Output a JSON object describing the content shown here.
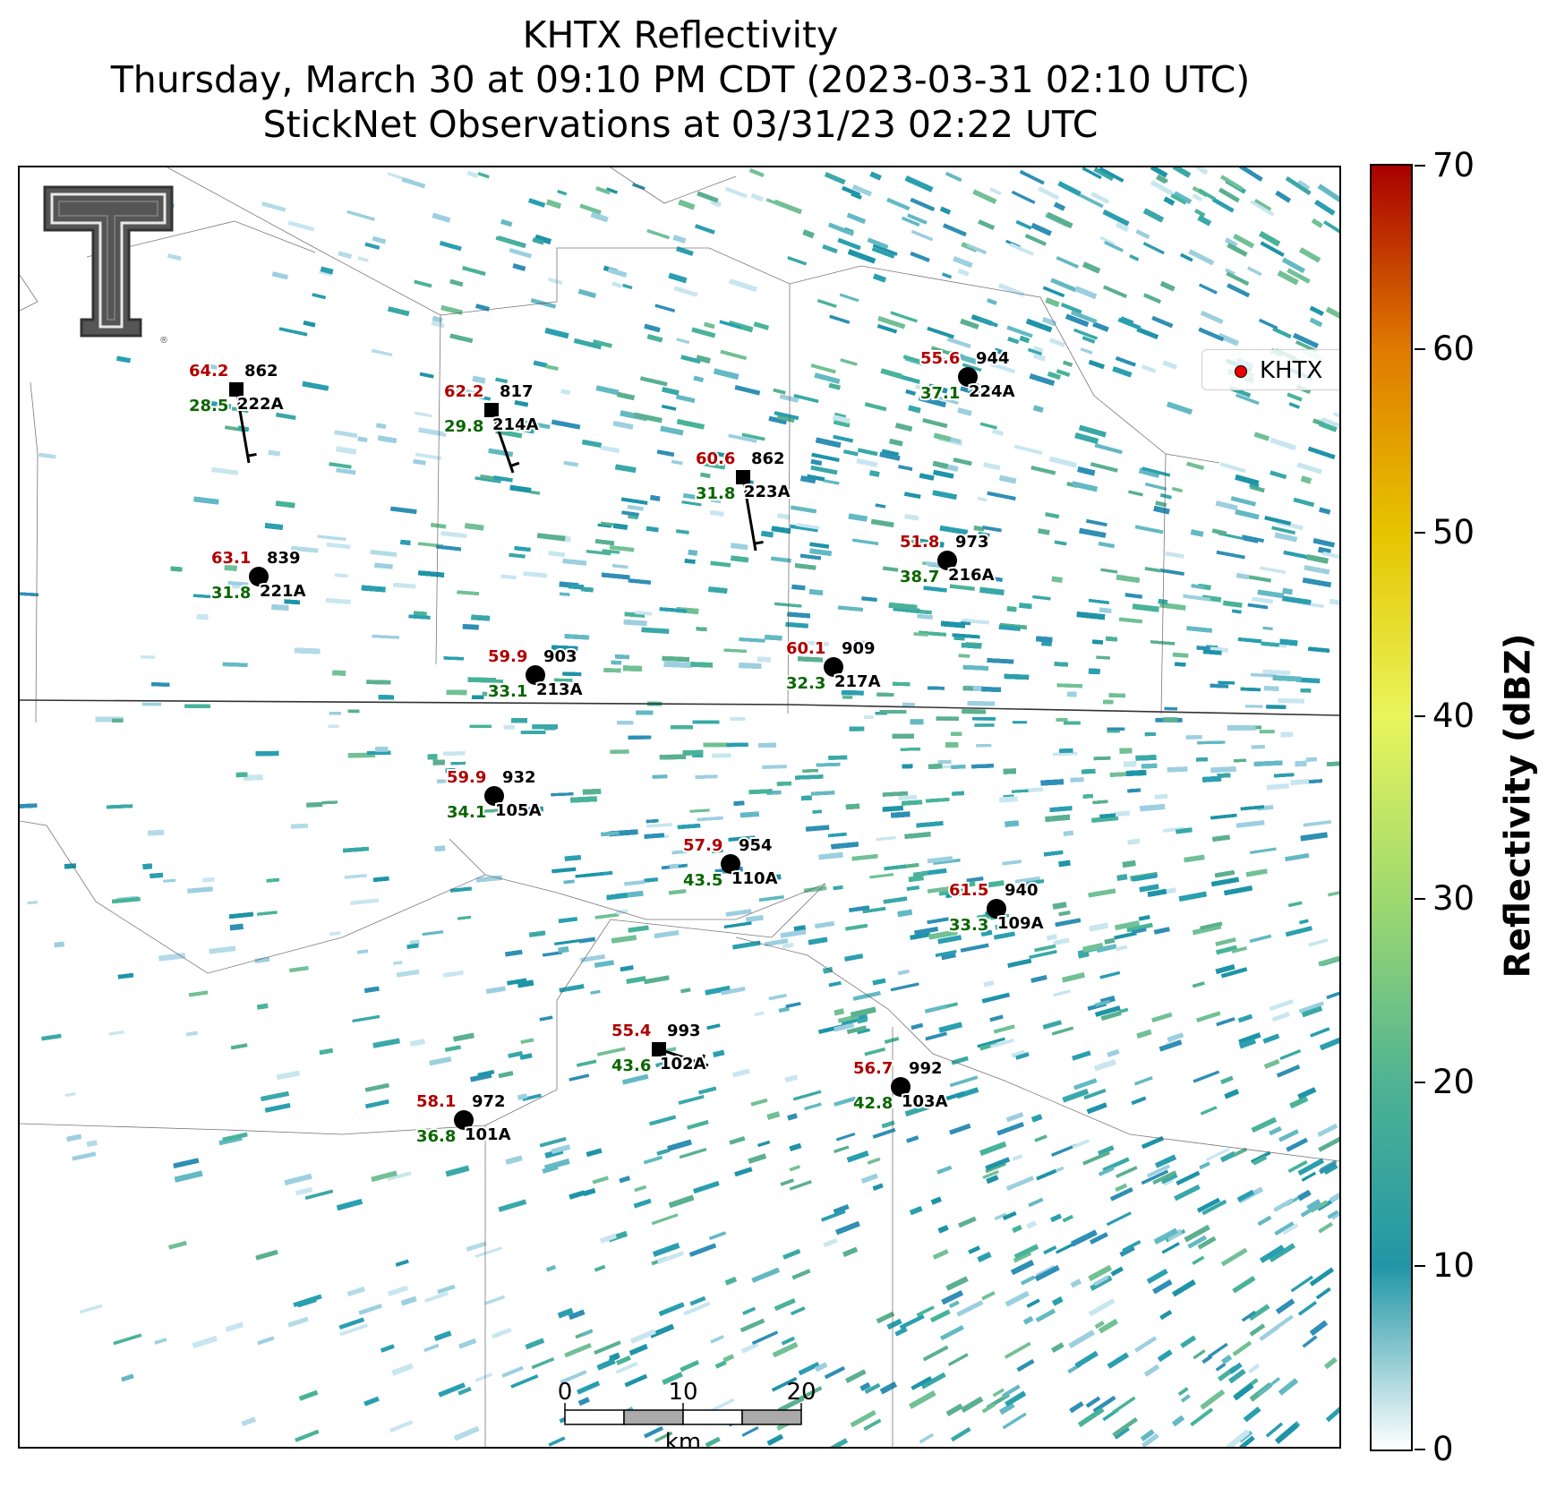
{
  "header": {
    "title_line1": "KHTX Reflectivity",
    "title_line2": "Thursday, March 30 at 09:10 PM CDT (2023-03-31 02:10 UTC)",
    "title_line3": "StickNet Observations at 03/31/23 02:22 UTC"
  },
  "legend": {
    "label": "KHTX",
    "marker_color": "#ee0000"
  },
  "logo": {
    "text": "Texas Tech double-T",
    "registered_mark": "®"
  },
  "colorbar": {
    "label": "Reflectivity (dBZ)",
    "min": 0,
    "max": 70,
    "ticks": [
      "0",
      "10",
      "20",
      "30",
      "40",
      "50",
      "60",
      "70"
    ],
    "colormap": [
      "#ffffff",
      "#2196a6",
      "#4fb393",
      "#9ed96f",
      "#e9f55b",
      "#e6c400",
      "#e07a00",
      "#a80000"
    ]
  },
  "scalebar": {
    "unit": "km",
    "ticks": [
      "0",
      "10",
      "20"
    ]
  },
  "colors": {
    "temperature": "#b00000",
    "dewpoint": "#0a6600",
    "station": "#000000"
  },
  "stations": [
    {
      "id": "222A",
      "temp": "64.2",
      "dew": "28.5",
      "pressure": "862",
      "marker": "square",
      "wind": "N"
    },
    {
      "id": "214A",
      "temp": "62.2",
      "dew": "29.8",
      "pressure": "817",
      "marker": "square",
      "wind": "NNW"
    },
    {
      "id": "223A",
      "temp": "60.6",
      "dew": "31.8",
      "pressure": "862",
      "marker": "square",
      "wind": "N"
    },
    {
      "id": "224A",
      "temp": "55.6",
      "dew": "37.1",
      "pressure": "944",
      "marker": "circle"
    },
    {
      "id": "221A",
      "temp": "63.1",
      "dew": "31.8",
      "pressure": "839",
      "marker": "circle"
    },
    {
      "id": "216A",
      "temp": "51.8",
      "dew": "38.7",
      "pressure": "973",
      "marker": "circle"
    },
    {
      "id": "213A",
      "temp": "59.9",
      "dew": "33.1",
      "pressure": "903",
      "marker": "circle"
    },
    {
      "id": "217A",
      "temp": "60.1",
      "dew": "32.3",
      "pressure": "909",
      "marker": "circle"
    },
    {
      "id": "105A",
      "temp": "59.9",
      "dew": "34.1",
      "pressure": "932",
      "marker": "circle"
    },
    {
      "id": "110A",
      "temp": "57.9",
      "dew": "43.5",
      "pressure": "954",
      "marker": "circle"
    },
    {
      "id": "109A",
      "temp": "61.5",
      "dew": "33.3",
      "pressure": "940",
      "marker": "circle"
    },
    {
      "id": "102A",
      "temp": "55.4",
      "dew": "43.6",
      "pressure": "993",
      "marker": "square",
      "wind": "WNW"
    },
    {
      "id": "103A",
      "temp": "56.7",
      "dew": "42.8",
      "pressure": "992",
      "marker": "circle"
    },
    {
      "id": "101A",
      "temp": "58.1",
      "dew": "36.8",
      "pressure": "972",
      "marker": "circle"
    }
  ]
}
